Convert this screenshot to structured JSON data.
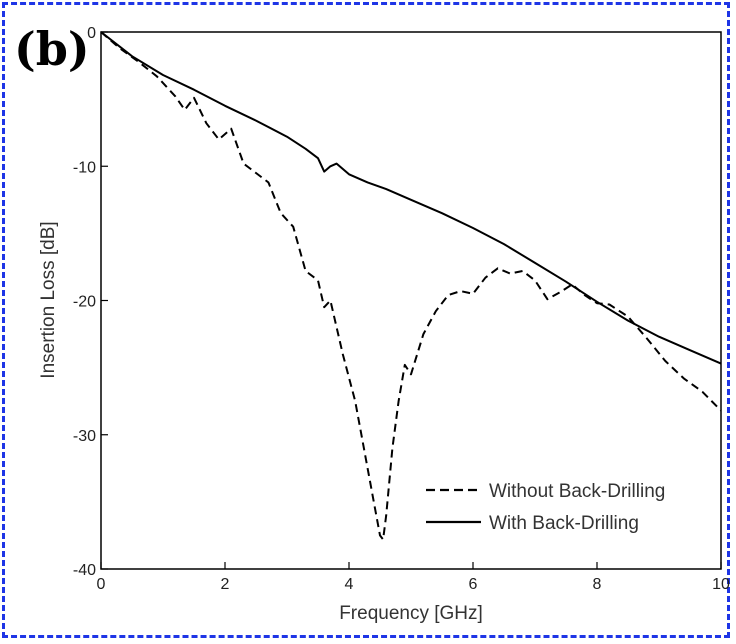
{
  "panel_label": "(b)",
  "chart_data": {
    "type": "line",
    "xlabel": "Frequency [GHz]",
    "ylabel": "Insertion Loss [dB]",
    "xlim": [
      0,
      10
    ],
    "ylim": [
      -40,
      0
    ],
    "x_ticks": [
      0,
      2,
      4,
      6,
      8,
      10
    ],
    "y_ticks": [
      0,
      -10,
      -20,
      -30,
      -40
    ],
    "grid": false,
    "legend_position": "bottom-right",
    "series": [
      {
        "name": "Without Back-Drilling",
        "style": "dashed",
        "color": "#000000",
        "x": [
          0,
          0.3,
          0.6,
          0.9,
          1.2,
          1.35,
          1.5,
          1.7,
          1.9,
          2.1,
          2.3,
          2.5,
          2.7,
          2.9,
          3.1,
          3.3,
          3.5,
          3.6,
          3.7,
          3.9,
          4.1,
          4.3,
          4.4,
          4.5,
          4.55,
          4.6,
          4.7,
          4.8,
          4.9,
          5.0,
          5.2,
          5.4,
          5.6,
          5.8,
          6.0,
          6.2,
          6.4,
          6.6,
          6.8,
          7.0,
          7.2,
          7.4,
          7.6,
          7.8,
          8.0,
          8.2,
          8.5,
          8.8,
          9.1,
          9.4,
          9.7,
          10
        ],
        "y": [
          0,
          -1.2,
          -2.2,
          -3.3,
          -4.8,
          -5.8,
          -4.9,
          -6.8,
          -8.0,
          -7.2,
          -9.8,
          -10.5,
          -11.2,
          -13.5,
          -14.5,
          -17.8,
          -18.5,
          -20.5,
          -20.0,
          -24.0,
          -27.5,
          -32.5,
          -35.0,
          -37.5,
          -37.8,
          -36.0,
          -31.0,
          -27.5,
          -24.8,
          -25.5,
          -22.5,
          -20.8,
          -19.6,
          -19.3,
          -19.5,
          -18.3,
          -17.6,
          -18.0,
          -17.8,
          -18.5,
          -19.9,
          -19.4,
          -18.8,
          -19.6,
          -20.2,
          -20.3,
          -21.2,
          -22.8,
          -24.5,
          -25.8,
          -26.8,
          -28.2
        ]
      },
      {
        "name": "With Back-Drilling",
        "style": "solid",
        "color": "#000000",
        "x": [
          0,
          0.5,
          1.0,
          1.5,
          2.0,
          2.5,
          3.0,
          3.3,
          3.5,
          3.6,
          3.7,
          3.8,
          4.0,
          4.3,
          4.6,
          5.0,
          5.5,
          6.0,
          6.5,
          7.0,
          7.5,
          8.0,
          8.5,
          9.0,
          9.5,
          10
        ],
        "y": [
          0,
          -1.8,
          -3.2,
          -4.3,
          -5.5,
          -6.6,
          -7.8,
          -8.7,
          -9.4,
          -10.4,
          -10.0,
          -9.8,
          -10.6,
          -11.2,
          -11.7,
          -12.5,
          -13.5,
          -14.6,
          -15.8,
          -17.2,
          -18.6,
          -20.1,
          -21.5,
          -22.7,
          -23.7,
          -24.7
        ]
      }
    ]
  }
}
